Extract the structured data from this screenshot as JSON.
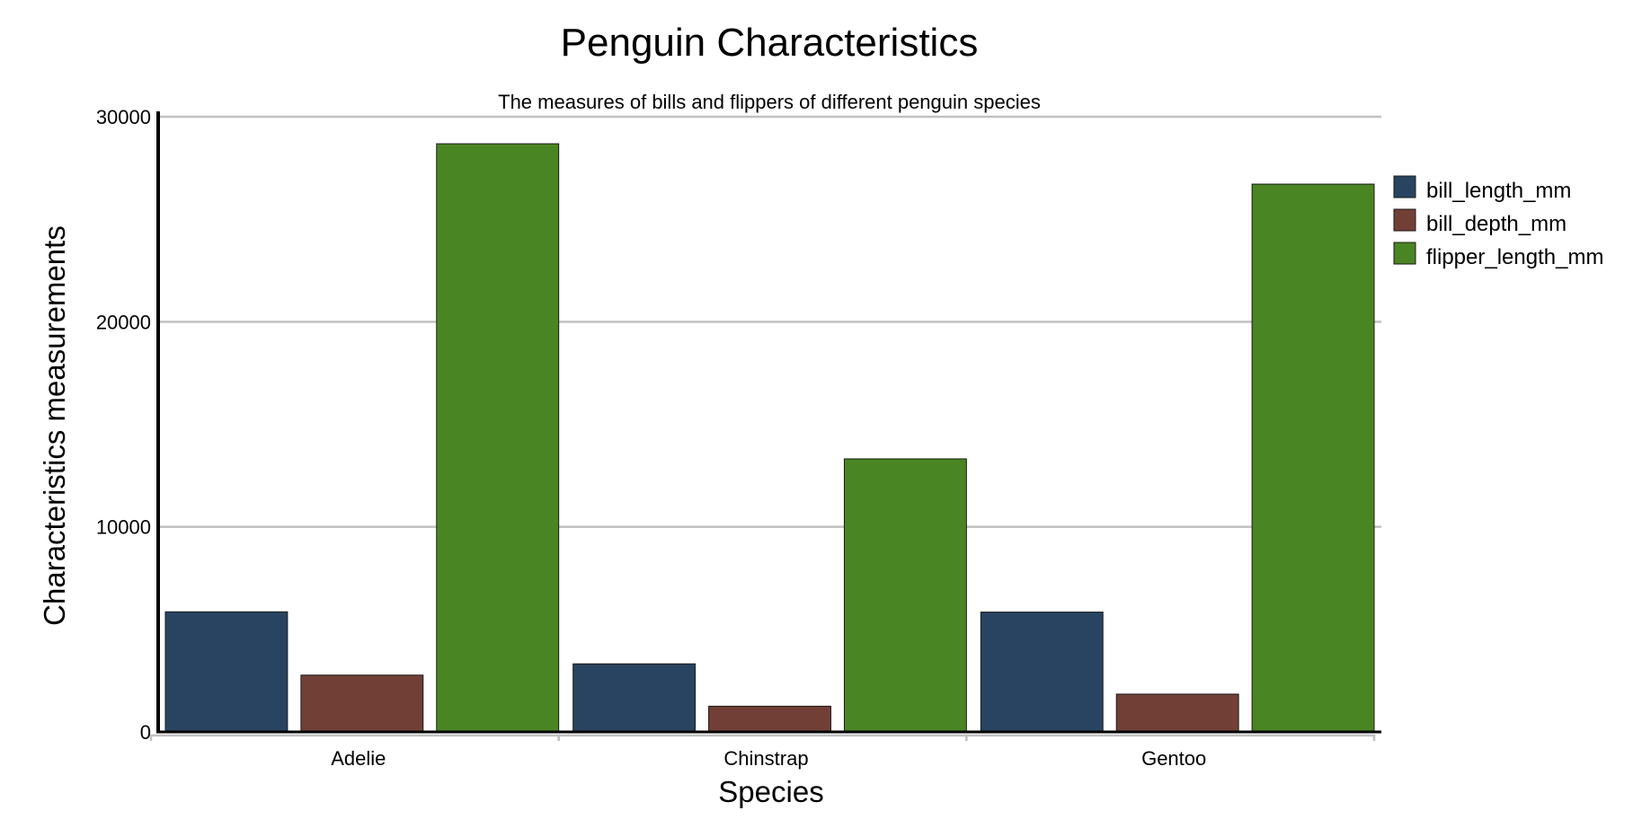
{
  "chart_data": {
    "type": "bar",
    "title": "Penguin Characteristics",
    "subtitle": "The measures of bills and flippers of different penguin species",
    "xlabel": "Species",
    "ylabel": "Characteristics measurements",
    "categories": [
      "Adelie",
      "Chinstrap",
      "Gentoo"
    ],
    "series": [
      {
        "name": "bill_length_mm",
        "color": "#284460",
        "values": [
          5857,
          3320,
          5843
        ]
      },
      {
        "name": "bill_depth_mm",
        "color": "#723f37",
        "values": [
          2770,
          1253,
          1843
        ]
      },
      {
        "name": "flipper_length_mm",
        "color": "#4a8523",
        "values": [
          28683,
          13316,
          26714
        ]
      }
    ],
    "ylim": [
      0,
      30000
    ],
    "yticks": [
      0,
      10000,
      20000,
      30000
    ],
    "ytick_labels": [
      "0",
      "10000",
      "20000",
      "30000"
    ],
    "grid": true,
    "legend_position": "right"
  }
}
